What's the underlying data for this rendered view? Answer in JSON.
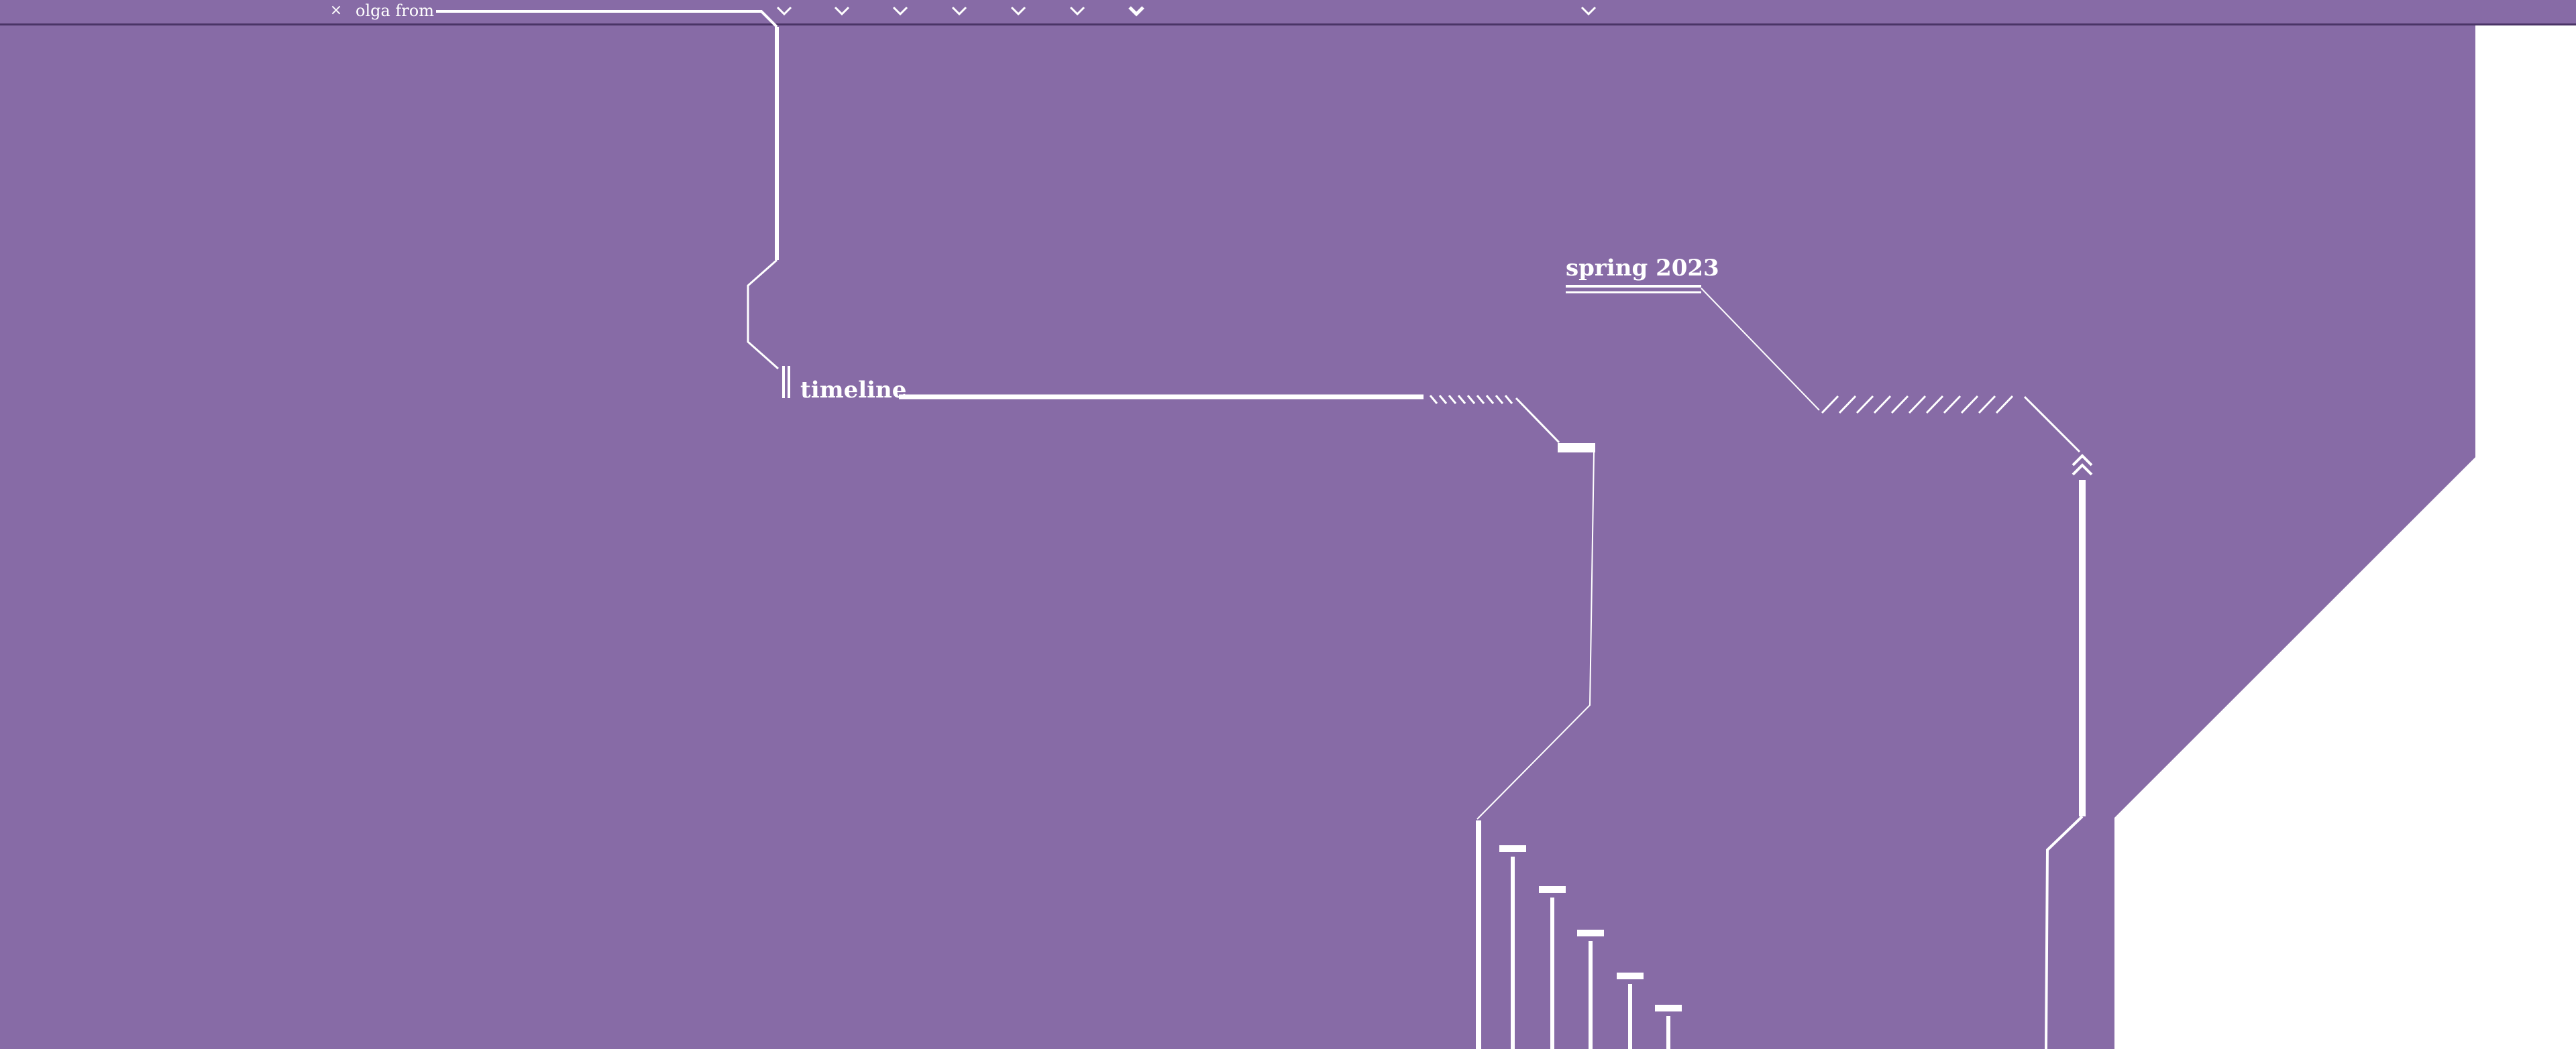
{
  "search": {
    "close_glyph": "×",
    "query": "olga from"
  },
  "labels": {
    "timeline": "timeline",
    "spring": "spring 2023"
  },
  "icons": {
    "close": "close-icon",
    "chevron": "chevron-down-icon",
    "chevron_up": "chevron-up-icon"
  },
  "colors": {
    "background": "#876ba6",
    "foreground": "#ffffff",
    "border": "#4a3466"
  }
}
